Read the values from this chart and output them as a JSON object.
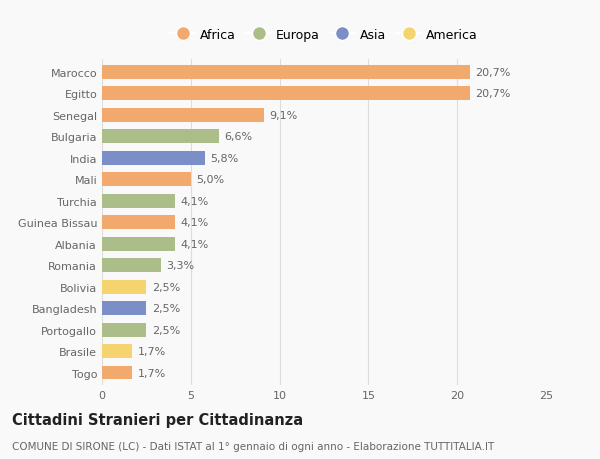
{
  "categories": [
    "Marocco",
    "Egitto",
    "Senegal",
    "Bulgaria",
    "India",
    "Mali",
    "Turchia",
    "Guinea Bissau",
    "Albania",
    "Romania",
    "Bolivia",
    "Bangladesh",
    "Portogallo",
    "Brasile",
    "Togo"
  ],
  "values": [
    20.7,
    20.7,
    9.1,
    6.6,
    5.8,
    5.0,
    4.1,
    4.1,
    4.1,
    3.3,
    2.5,
    2.5,
    2.5,
    1.7,
    1.7
  ],
  "labels": [
    "20,7%",
    "20,7%",
    "9,1%",
    "6,6%",
    "5,8%",
    "5,0%",
    "4,1%",
    "4,1%",
    "4,1%",
    "3,3%",
    "2,5%",
    "2,5%",
    "2,5%",
    "1,7%",
    "1,7%"
  ],
  "colors": [
    "#F2A96E",
    "#F2A96E",
    "#F2A96E",
    "#ABBE8A",
    "#7B8EC8",
    "#F2A96E",
    "#ABBE8A",
    "#F2A96E",
    "#ABBE8A",
    "#ABBE8A",
    "#F5D470",
    "#7B8EC8",
    "#ABBE8A",
    "#F5D470",
    "#F2A96E"
  ],
  "legend_labels": [
    "Africa",
    "Europa",
    "Asia",
    "America"
  ],
  "legend_colors": [
    "#F2A96E",
    "#ABBE8A",
    "#7B8EC8",
    "#F5D470"
  ],
  "xlim": [
    0,
    25
  ],
  "xticks": [
    0,
    5,
    10,
    15,
    20,
    25
  ],
  "title": "Cittadini Stranieri per Cittadinanza",
  "subtitle": "COMUNE DI SIRONE (LC) - Dati ISTAT al 1° gennaio di ogni anno - Elaborazione TUTTITALIA.IT",
  "bg_color": "#f9f9f9",
  "bar_height": 0.65,
  "label_fontsize": 8,
  "title_fontsize": 10.5,
  "subtitle_fontsize": 7.5,
  "tick_fontsize": 8,
  "grid_color": "#dddddd"
}
